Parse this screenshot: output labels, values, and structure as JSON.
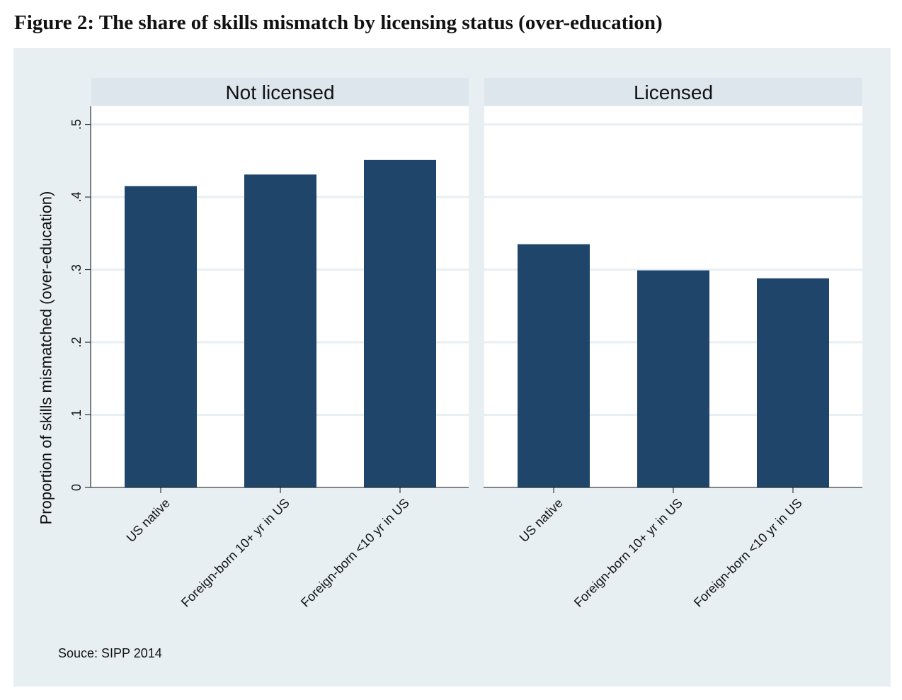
{
  "figure_title": "Figure 2: The share of skills mismatch by licensing status (over-education)",
  "source_note": "Souce: SIPP 2014",
  "colors": {
    "bar": "#1f456b",
    "panel_bg": "#ffffff",
    "strip_bg": "#dce6ec",
    "outer_bg": "#e8eff2",
    "grid": "#e8eff2"
  },
  "chart_data": {
    "type": "bar",
    "ylabel": "Proportion of skills mismatched (over-education)",
    "ylim": [
      0,
      0.525
    ],
    "yticks": [
      0,
      0.1,
      0.2,
      0.3,
      0.4,
      0.5
    ],
    "ytick_labels": [
      "0",
      ".1",
      ".2",
      ".3",
      ".4",
      ".5"
    ],
    "categories": [
      "US native",
      "Foreign-born 10+ yr in US",
      "Foreign-born <10 yr in US"
    ],
    "panels": [
      {
        "name": "Not licensed",
        "values": [
          0.415,
          0.431,
          0.451
        ]
      },
      {
        "name": "Licensed",
        "values": [
          0.335,
          0.299,
          0.288
        ]
      }
    ]
  }
}
